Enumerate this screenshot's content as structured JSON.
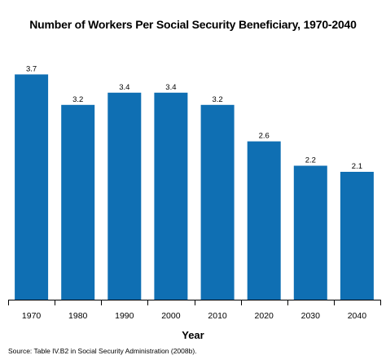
{
  "chart_data": {
    "type": "bar",
    "title": "Number of Workers Per Social Security Beneficiary, 1970-2040",
    "xlabel": "Year",
    "ylabel": "",
    "categories": [
      "1970",
      "1980",
      "1990",
      "2000",
      "2010",
      "2020",
      "2030",
      "2040"
    ],
    "values": [
      3.7,
      3.2,
      3.4,
      3.4,
      3.2,
      2.6,
      2.2,
      2.1
    ],
    "data_labels": [
      "3.7",
      "3.2",
      "3.4",
      "3.4",
      "3.2",
      "2.6",
      "2.2",
      "2.1"
    ],
    "ylim": [
      0,
      4.2
    ],
    "grid": false,
    "legend": "none",
    "bar_color": "#0f6fb3",
    "source": "Source: Table IV.B2 in Social Security Administration (2008b)."
  }
}
